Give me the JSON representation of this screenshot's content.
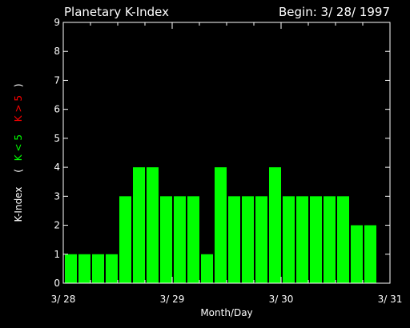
{
  "chart_data": {
    "type": "bar",
    "title": "Planetary K-Index",
    "begin_label": "Begin: 3/ 28/ 1997",
    "xlabel": "Month/Day",
    "ylabel": "K-Index",
    "legend": {
      "open": "(",
      "low_label": "K < 5",
      "high_label": "K > 5",
      "close": ")",
      "low_color": "#00ff00",
      "high_color": "#ff0000"
    },
    "ylim": [
      0,
      9
    ],
    "yticks": [
      "0",
      "1",
      "2",
      "3",
      "4",
      "5",
      "6",
      "7",
      "8",
      "9"
    ],
    "xlim": [
      0,
      24
    ],
    "xticks": [
      {
        "value": 0,
        "label": "3/ 28"
      },
      {
        "value": 8,
        "label": "3/ 29"
      },
      {
        "value": 16,
        "label": "3/ 30"
      },
      {
        "value": 24,
        "label": "3/ 31"
      }
    ],
    "bar_color": "#00ff00",
    "values": [
      1,
      1,
      1,
      1,
      3,
      4,
      4,
      3,
      3,
      3,
      1,
      4,
      3,
      3,
      3,
      4,
      3,
      3,
      3,
      3,
      3,
      2,
      2
    ]
  }
}
